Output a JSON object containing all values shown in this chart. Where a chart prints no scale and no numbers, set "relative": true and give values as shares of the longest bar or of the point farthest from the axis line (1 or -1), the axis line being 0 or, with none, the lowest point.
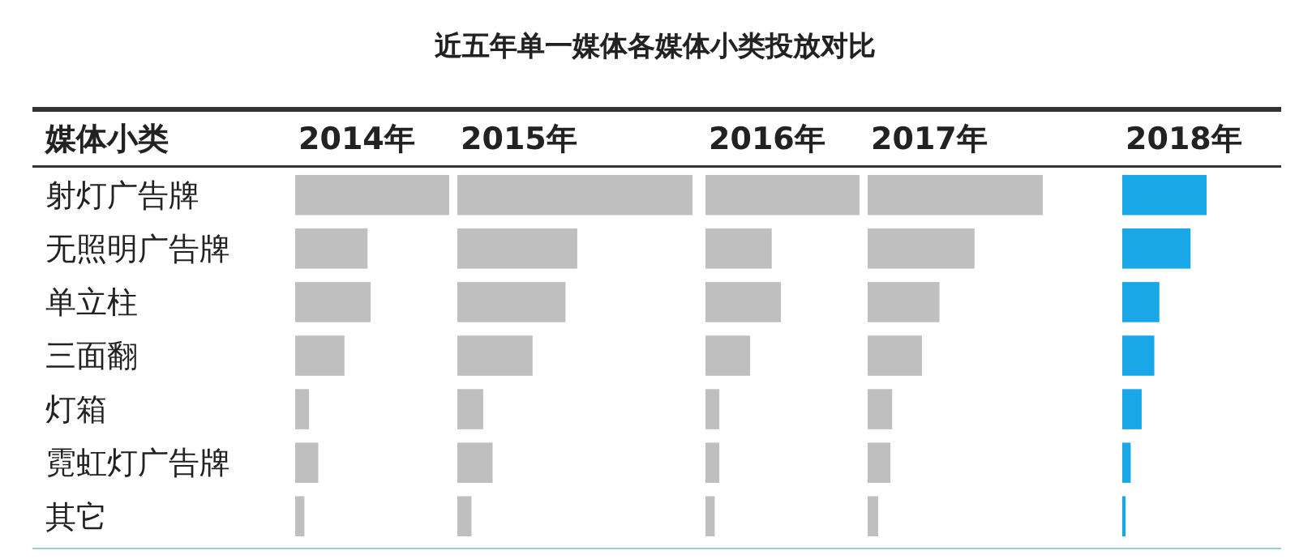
{
  "chart_data": [
    {
      "type": "bar",
      "orientation": "horizontal",
      "relative": true,
      "title": "2014年",
      "ylabel": "媒体小类",
      "annotations": [
        "近五年单一媒体各媒体小类投放对比"
      ],
      "tick_labels": "y",
      "color": "#bfbfbf",
      "categories": [
        "射灯广告牌",
        "无照明广告牌",
        "单立柱",
        "三面翻",
        "灯箱",
        "霓虹灯广告牌",
        "其它"
      ],
      "values": [
        1,
        0.47,
        0.49,
        0.32,
        0.09,
        0.15,
        0.06
      ]
    },
    {
      "type": "bar",
      "orientation": "horizontal",
      "relative": true,
      "title": "2015年",
      "color": "#bfbfbf",
      "categories": [
        null,
        null,
        null,
        null,
        null,
        null,
        null
      ],
      "values": [
        1,
        0.51,
        0.46,
        0.32,
        0.11,
        0.15,
        0.06
      ]
    },
    {
      "type": "bar",
      "orientation": "horizontal",
      "relative": true,
      "title": "2016年",
      "color": "#bfbfbf",
      "categories": [
        null,
        null,
        null,
        null,
        null,
        null,
        null
      ],
      "values": [
        1,
        0.43,
        0.49,
        0.29,
        0.09,
        0.09,
        0.06
      ]
    },
    {
      "type": "bar",
      "orientation": "horizontal",
      "relative": true,
      "title": "2017年",
      "color": "#bfbfbf",
      "categories": [
        null,
        null,
        null,
        null,
        null,
        null,
        null
      ],
      "values": [
        1,
        0.61,
        0.41,
        0.31,
        0.14,
        0.13,
        0.06
      ]
    },
    {
      "type": "bar",
      "orientation": "horizontal",
      "relative": true,
      "title": "2018年",
      "color": "#1aa7e8",
      "categories": [
        null,
        null,
        null,
        null,
        null,
        null,
        null
      ],
      "values": [
        1,
        0.81,
        0.44,
        0.38,
        0.23,
        0.1,
        0.04
      ]
    }
  ]
}
